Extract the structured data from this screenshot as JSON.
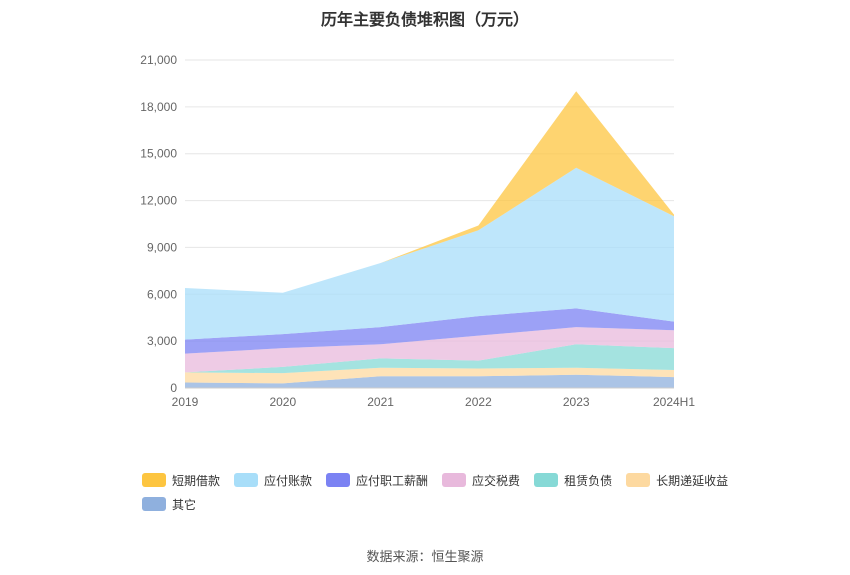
{
  "source_label": "数据来源：恒生聚源",
  "chart_data": {
    "type": "area",
    "stacked": true,
    "title": "历年主要负债堆积图（万元）",
    "x": [
      "2019",
      "2020",
      "2021",
      "2022",
      "2023",
      "2024H1"
    ],
    "y_ticks": [
      "0",
      "3,000",
      "6,000",
      "9,000",
      "12,000",
      "15,000",
      "18,000",
      "21,000"
    ],
    "ylim": [
      0,
      21000
    ],
    "grid": true,
    "legend_position": "bottom",
    "series": [
      {
        "name": "其它",
        "color": "#8fb0de",
        "values": [
          350,
          300,
          750,
          750,
          850,
          700
        ]
      },
      {
        "name": "长期递延收益",
        "color": "#fdd9a0",
        "values": [
          650,
          650,
          550,
          500,
          450,
          450
        ]
      },
      {
        "name": "租赁负债",
        "color": "#86d9d6",
        "values": [
          0,
          400,
          600,
          500,
          1500,
          1400
        ]
      },
      {
        "name": "应交税费",
        "color": "#e8b9dc",
        "values": [
          1200,
          1200,
          900,
          1600,
          1100,
          1150
        ]
      },
      {
        "name": "应付职工薪酬",
        "color": "#7b82f3",
        "values": [
          900,
          900,
          1100,
          1250,
          1200,
          550
        ]
      },
      {
        "name": "应付账款",
        "color": "#a8def9",
        "values": [
          3300,
          2650,
          4100,
          5500,
          9000,
          6750
        ]
      },
      {
        "name": "短期借款",
        "color": "#fdc540",
        "values": [
          0,
          0,
          0,
          300,
          4900,
          100
        ]
      }
    ],
    "legend_order": [
      "短期借款",
      "应付账款",
      "应付职工薪酬",
      "应交税费",
      "租赁负债",
      "长期递延收益",
      "其它"
    ]
  }
}
